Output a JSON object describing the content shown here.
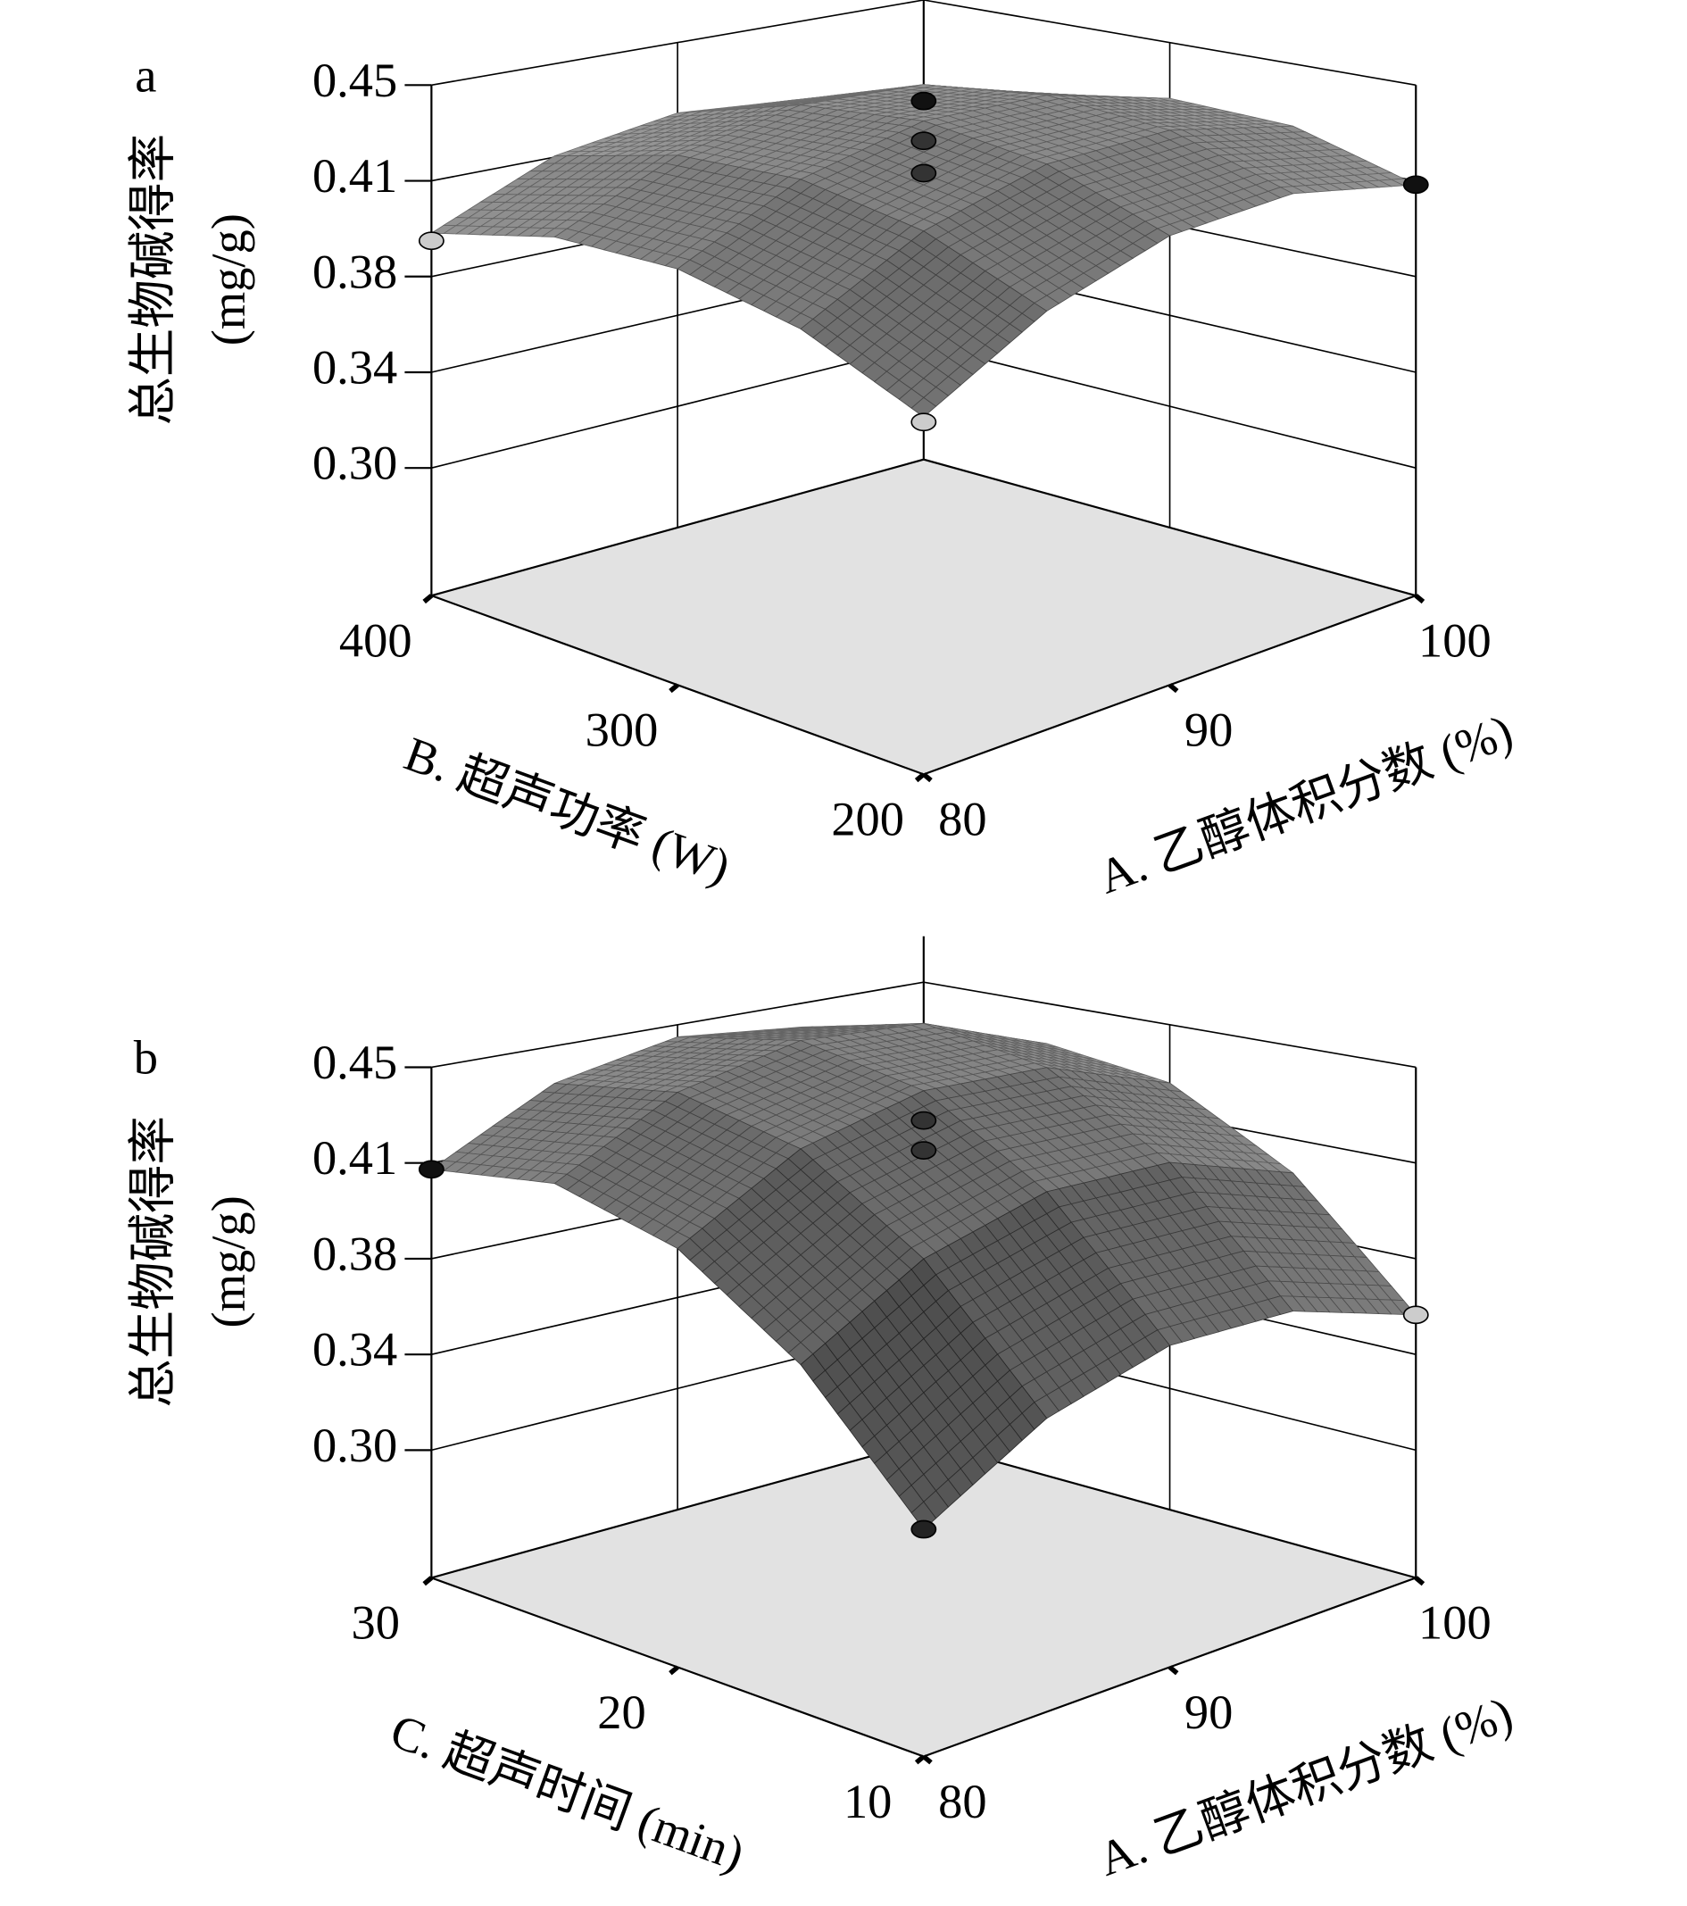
{
  "chart_data": [
    {
      "type": "surface",
      "label": "a",
      "zlabel": "总生物碱得率",
      "zunit": "(mg/g)",
      "xlabel": "A. 乙醇体积分数 (%)",
      "ylabel": "B. 超声功率 (W)",
      "xlim": [
        80,
        100
      ],
      "xticks": [
        80,
        90,
        100
      ],
      "ylim": [
        200,
        400
      ],
      "yticks": [
        200,
        300,
        400
      ],
      "zlim": [
        0.25,
        0.45
      ],
      "zticks": [
        {
          "value": 0.3,
          "label": "0.30"
        },
        {
          "value": 0.3375,
          "label": "0.34"
        },
        {
          "value": 0.375,
          "label": "0.38"
        },
        {
          "value": 0.4125,
          "label": "0.41"
        },
        0.45
      ],
      "x": [
        80,
        85,
        90,
        95,
        100
      ],
      "y": [
        200,
        250,
        300,
        350,
        400
      ],
      "z": [
        [
          0.39,
          0.414,
          0.426,
          0.425,
          0.411
        ],
        [
          0.407,
          0.43,
          0.441,
          0.439,
          0.425
        ],
        [
          0.413,
          0.435,
          0.445,
          0.442,
          0.427
        ],
        [
          0.408,
          0.429,
          0.438,
          0.435,
          0.419
        ],
        [
          0.392,
          0.413,
          0.421,
          0.417,
          0.4
        ]
      ],
      "points": [
        {
          "x": 90,
          "y": 300,
          "z": 0.453,
          "color": "#111111"
        },
        {
          "x": 90,
          "y": 300,
          "z": 0.437,
          "color": "#333333"
        },
        {
          "x": 90,
          "y": 300,
          "z": 0.424,
          "color": "#333333"
        },
        {
          "x": 80,
          "y": 400,
          "z": 0.389,
          "color": "#cccccc"
        },
        {
          "x": 100,
          "y": 200,
          "z": 0.411,
          "color": "#111111"
        },
        {
          "x": 80,
          "y": 200,
          "z": 0.388,
          "color": "#cccccc"
        }
      ]
    },
    {
      "type": "surface",
      "label": "b",
      "zlabel": "总生物碱得率",
      "zunit": "(mg/g)",
      "xlabel": "A. 乙醇体积分数 (%)",
      "ylabel": "C. 超声时间 (min)",
      "xlim": [
        80,
        100
      ],
      "xticks": [
        80,
        90,
        100
      ],
      "ylim": [
        10,
        30
      ],
      "yticks": [
        10,
        20,
        30
      ],
      "zlim": [
        0.25,
        0.45
      ],
      "zticks": [
        {
          "value": 0.3,
          "label": "0.30"
        },
        {
          "value": 0.3375,
          "label": "0.34"
        },
        {
          "value": 0.375,
          "label": "0.38"
        },
        {
          "value": 0.4125,
          "label": "0.41"
        },
        0.45
      ],
      "x": [
        80,
        85,
        90,
        95,
        100
      ],
      "y": [
        10,
        15,
        20,
        25,
        30
      ],
      "z": [
        [
          0.339,
          0.365,
          0.376,
          0.372,
          0.353
        ],
        [
          0.386,
          0.412,
          0.423,
          0.419,
          0.399
        ],
        [
          0.414,
          0.44,
          0.45,
          0.446,
          0.426
        ],
        [
          0.422,
          0.447,
          0.457,
          0.453,
          0.433
        ],
        [
          0.41,
          0.435,
          0.445,
          0.44,
          0.42
        ]
      ],
      "points": [
        {
          "x": 90,
          "y": 20,
          "z": 0.438,
          "color": "#333333"
        },
        {
          "x": 90,
          "y": 20,
          "z": 0.426,
          "color": "#333333"
        },
        {
          "x": 80,
          "y": 30,
          "z": 0.41,
          "color": "#111111"
        },
        {
          "x": 100,
          "y": 10,
          "z": 0.353,
          "color": "#cccccc"
        },
        {
          "x": 80,
          "y": 10,
          "z": 0.339,
          "color": "#222222"
        }
      ]
    }
  ]
}
